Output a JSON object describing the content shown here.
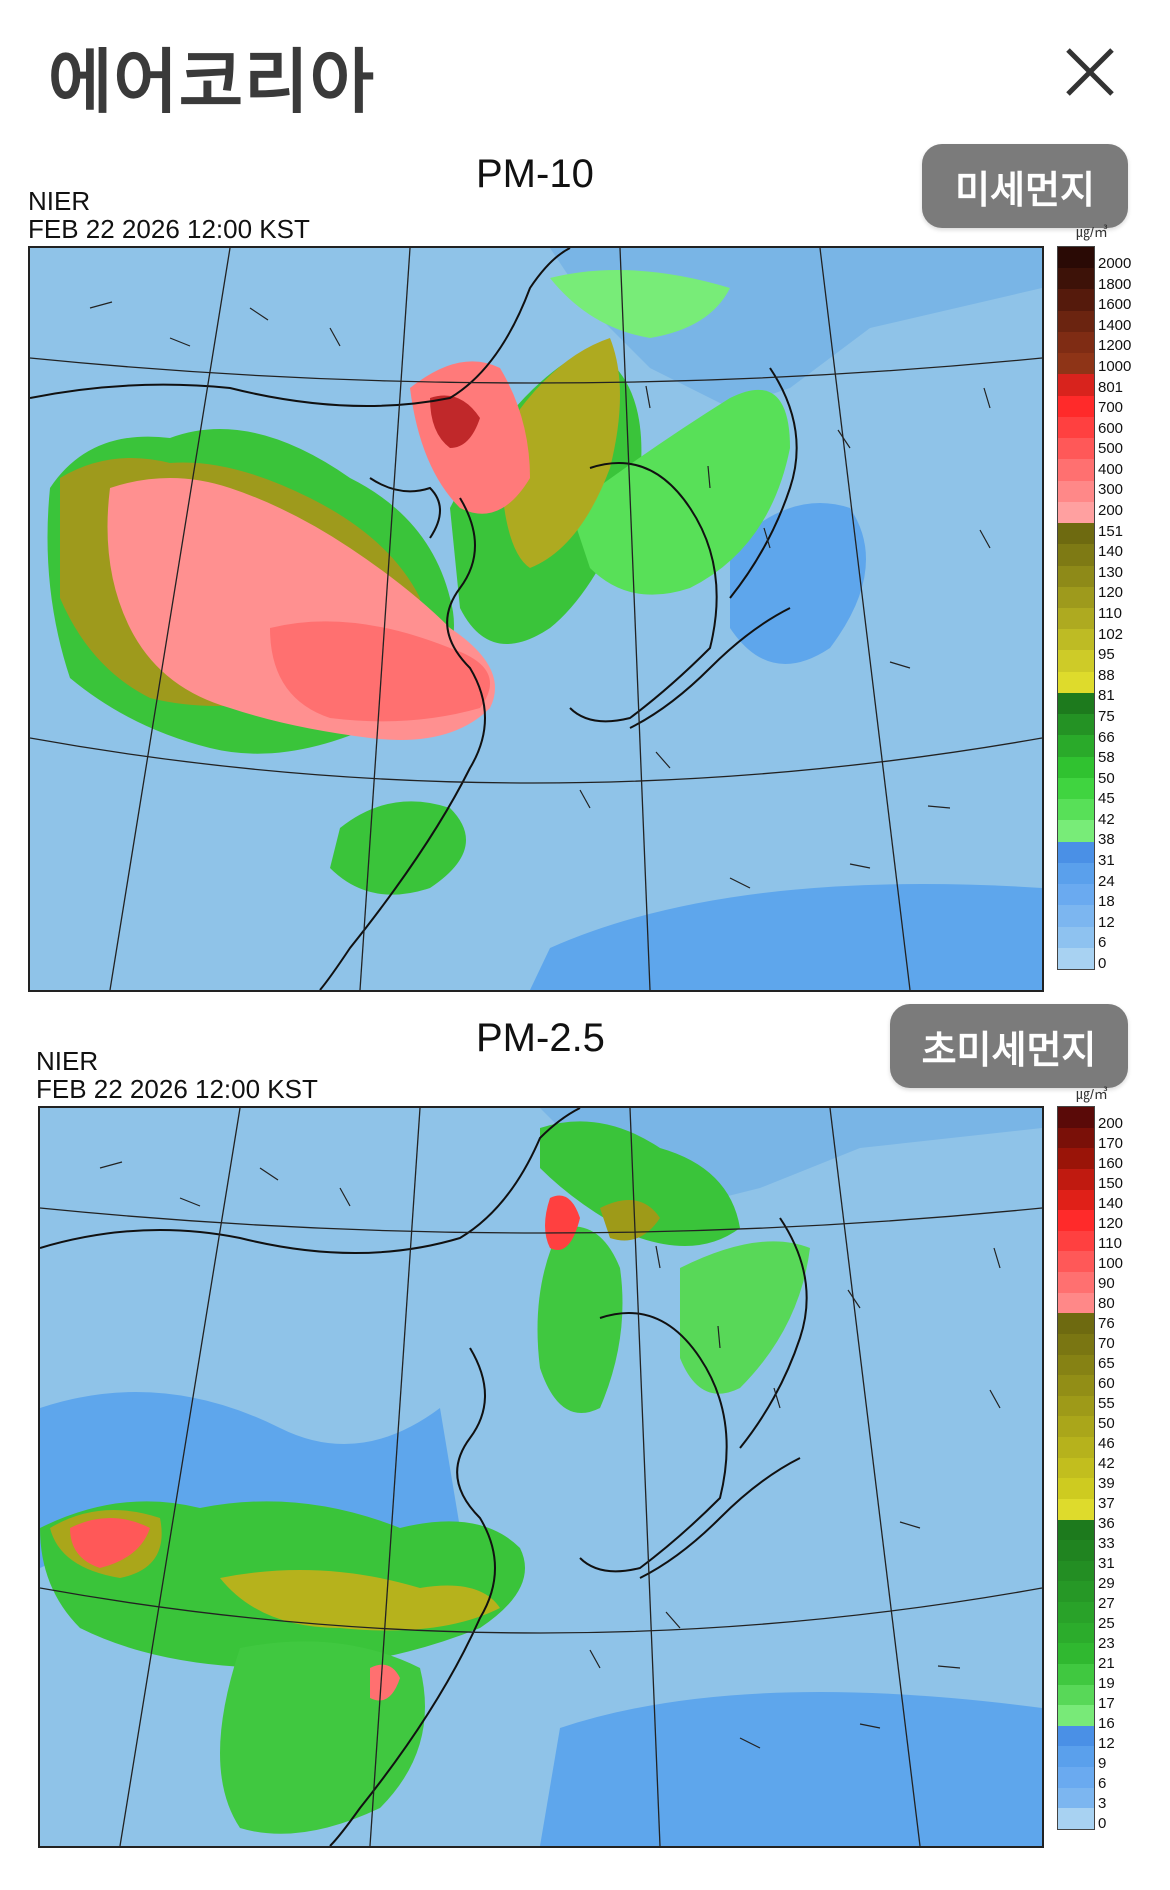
{
  "app": {
    "title": "에어코리아",
    "close_icon": "close-icon"
  },
  "pm10": {
    "title": "PM-10",
    "agency": "NIER",
    "datetime": "FEB 22 2026 12:00 KST",
    "button_label": "미세먼지",
    "unit": "㎍/㎥",
    "legend": [
      "2000",
      "1800",
      "1600",
      "1400",
      "1200",
      "1000",
      "801",
      "700",
      "600",
      "500",
      "400",
      "300",
      "200",
      "151",
      "140",
      "130",
      "120",
      "110",
      "102",
      "95",
      "88",
      "81",
      "75",
      "66",
      "58",
      "50",
      "45",
      "42",
      "38",
      "31",
      "24",
      "18",
      "12",
      "6",
      "0"
    ],
    "colors": [
      "#2a0a05",
      "#3d1208",
      "#551a0c",
      "#6b2410",
      "#7f2c14",
      "#8e3417",
      "#d8231d",
      "#ff2a2a",
      "#ff4040",
      "#ff5858",
      "#ff7070",
      "#ff8888",
      "#ffa0a0",
      "#6e6a10",
      "#7e7a14",
      "#8e8a18",
      "#9e9a1c",
      "#aeaa20",
      "#bebb24",
      "#cecb28",
      "#dedb2c",
      "#1d7a1d",
      "#249224",
      "#2aaa2a",
      "#30c230",
      "#40d440",
      "#58e058",
      "#78ec78",
      "#4a90e6",
      "#5aa0ec",
      "#6aaaf0",
      "#7cb6f0",
      "#8ec2f0",
      "#a8d2f2"
    ]
  },
  "pm25": {
    "title": "PM-2.5",
    "agency": "NIER",
    "datetime": "FEB 22 2026 12:00 KST",
    "button_label": "초미세먼지",
    "unit": "㎍/㎥",
    "legend": [
      "200",
      "170",
      "160",
      "150",
      "140",
      "120",
      "110",
      "100",
      "90",
      "80",
      "76",
      "70",
      "65",
      "60",
      "55",
      "50",
      "46",
      "42",
      "39",
      "37",
      "36",
      "33",
      "31",
      "29",
      "27",
      "25",
      "23",
      "21",
      "19",
      "17",
      "16",
      "12",
      "9",
      "6",
      "3",
      "0"
    ],
    "colors": [
      "#5a0a08",
      "#7a1008",
      "#9a1408",
      "#c01a10",
      "#e02018",
      "#ff2a2a",
      "#ff4040",
      "#ff5858",
      "#ff7070",
      "#ff8888",
      "#6e6a10",
      "#7a7612",
      "#868214",
      "#928e16",
      "#9e9a18",
      "#aaa61a",
      "#b6b21c",
      "#c2be1e",
      "#cecb20",
      "#dedb2c",
      "#1d7a1d",
      "#208420",
      "#238e23",
      "#269826",
      "#29a229",
      "#2cac2c",
      "#30b830",
      "#40c840",
      "#58d858",
      "#78ea78",
      "#4a90e6",
      "#5aa0ec",
      "#6aaaf0",
      "#7cb6f0",
      "#a8d2f2"
    ]
  }
}
